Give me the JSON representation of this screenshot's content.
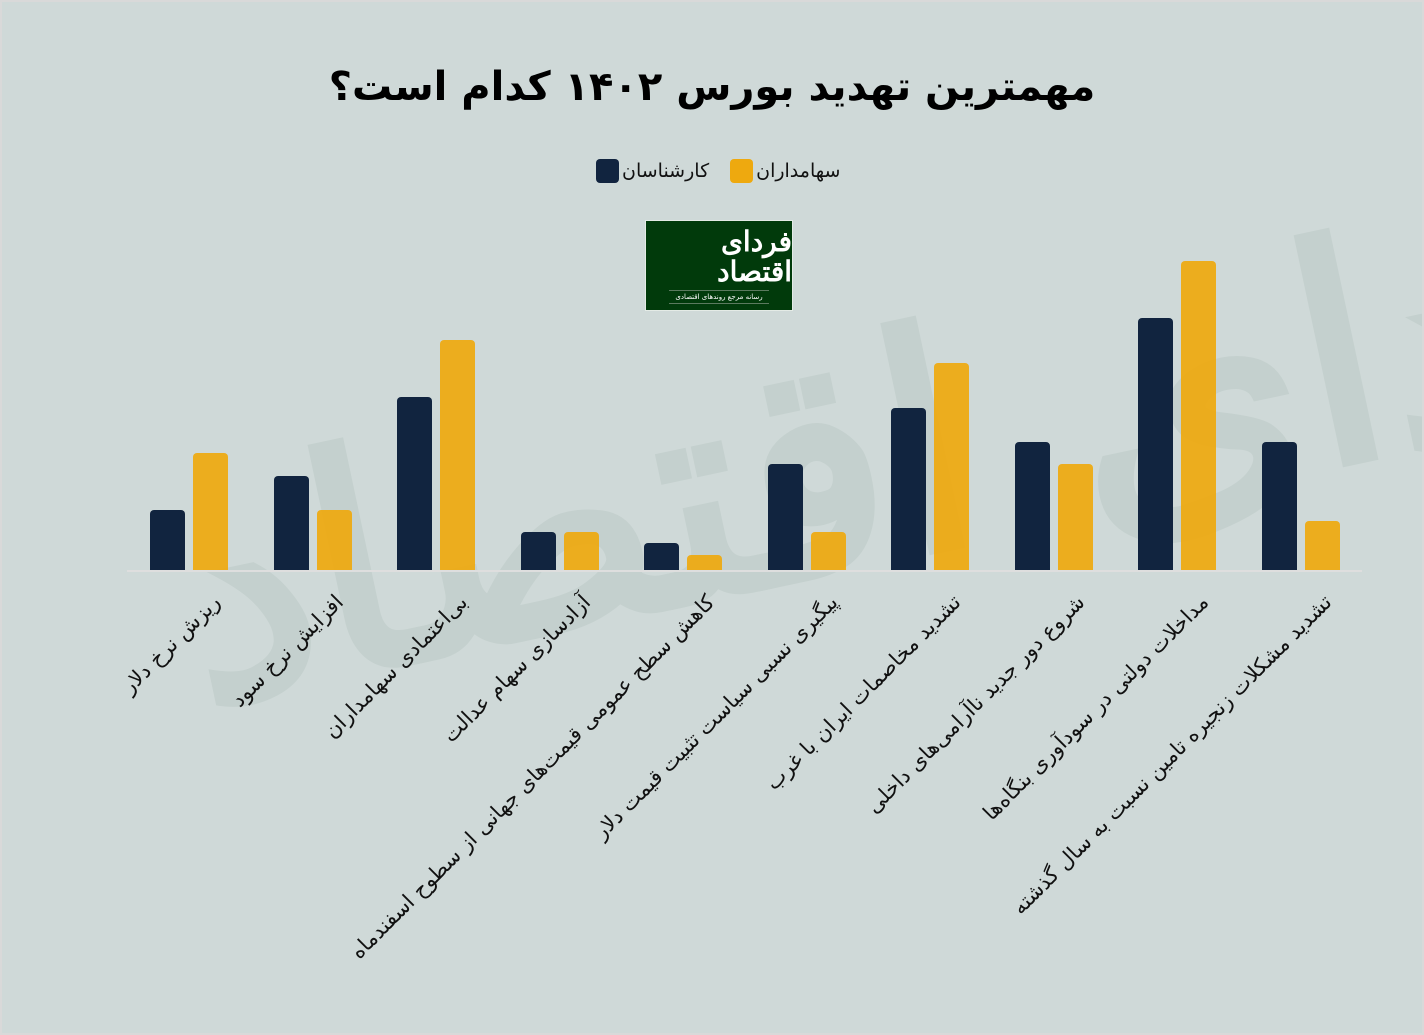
{
  "title": "مهمترین تهدید بورس ۱۴۰۲ کدام است؟",
  "legend": [
    {
      "label": "کارشناسان",
      "color": "#11243f"
    },
    {
      "label": "سهامداران",
      "color": "#eea90f"
    }
  ],
  "logo": {
    "main": "فردای اقتصاد",
    "sub": "رسانه مرجع روندهای اقتصادی",
    "bg": "#013a0b"
  },
  "watermark": "فردای اقتصاد",
  "colors": {
    "background": "#cfd9d8",
    "experts": "#11243f",
    "shareholders": "#eea90f",
    "baseline": "#dedede"
  },
  "chart_data": {
    "type": "bar",
    "title": "مهمترین تهدید بورس ۱۴۰۲ کدام است؟",
    "xlabel": "",
    "ylabel": "",
    "grid": false,
    "y_axis_visible": false,
    "legend_position": "top-center",
    "units": "relative bar height (px, no axis shown)",
    "categories": [
      "ریزش نرخ دلار",
      "افزایش نرخ سود",
      "بی‌اعتمادی سهامداران",
      "آزادسازی سهام عدالت",
      "کاهش سطح عمومی قیمت‌های جهانی از سطوح اسفندماه",
      "پیگیری نسبی سیاست تثبیت قیمت دلار",
      "تشدید مخاصمات ایران با غرب",
      "شروع دور جدید ناآرامی‌های داخلی",
      "مداخلات دولتی در سودآوری بنگاه‌ها",
      "تشدید مشکلات زنجیره تامین نسبت به سال گذشته"
    ],
    "series": [
      {
        "name": "کارشناسان",
        "color": "#11243f",
        "values": [
          60,
          94,
          173,
          38,
          27,
          106,
          162,
          128,
          252,
          128
        ]
      },
      {
        "name": "سهامداران",
        "color": "#eea90f",
        "values": [
          117,
          60,
          230,
          38,
          15,
          38,
          207,
          106,
          309,
          49
        ]
      }
    ]
  }
}
